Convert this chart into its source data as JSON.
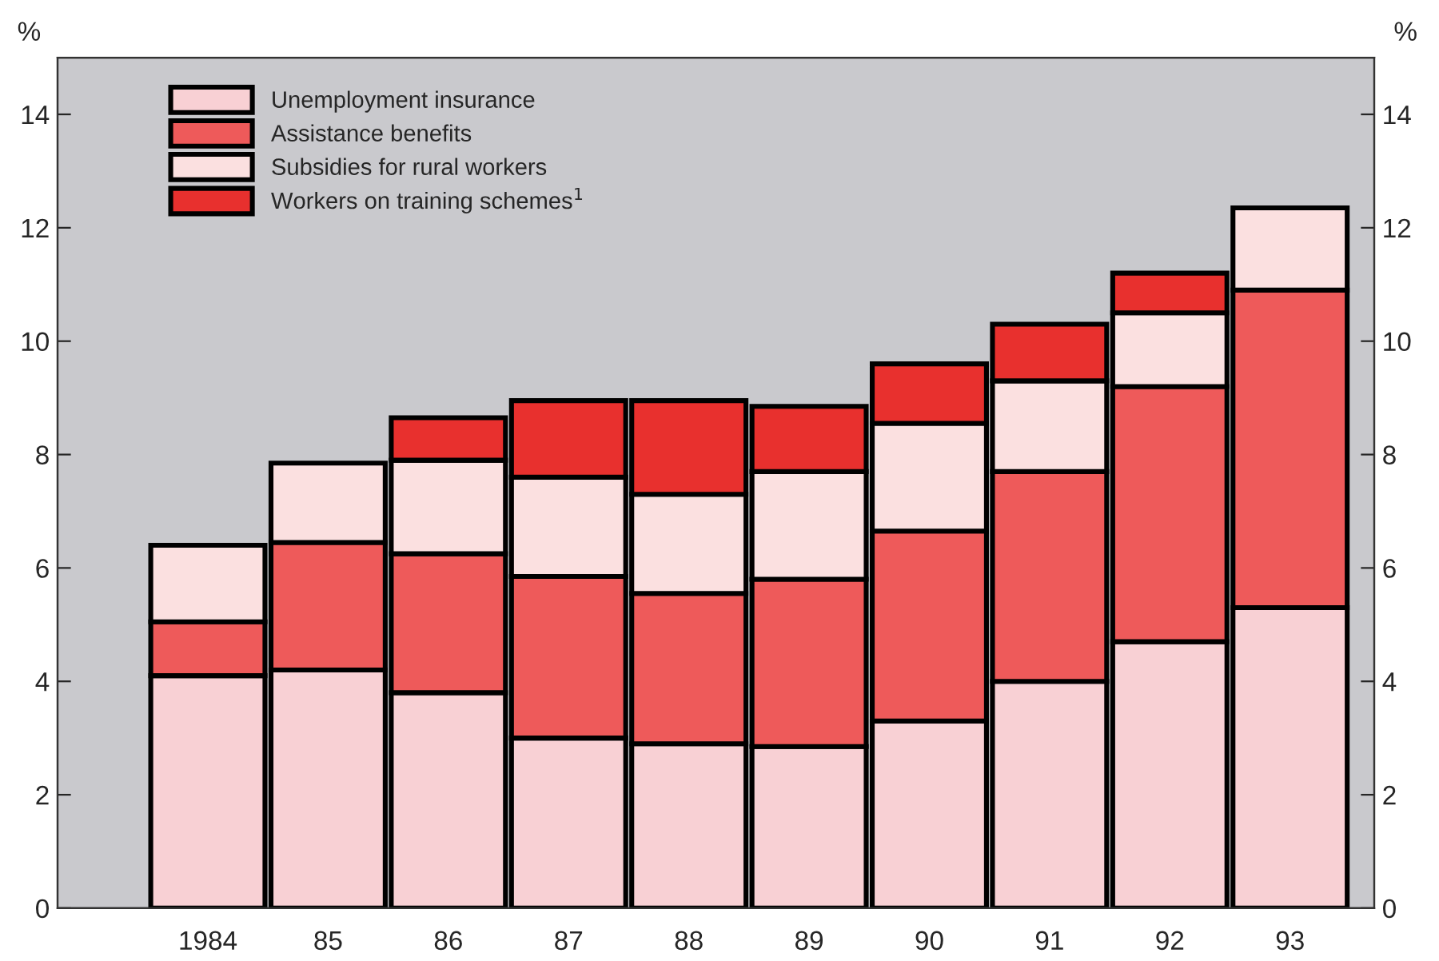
{
  "chart_data": {
    "type": "bar",
    "stacked": true,
    "ylabel": "%",
    "y2label": "%",
    "categories": [
      "1984",
      "85",
      "86",
      "87",
      "88",
      "89",
      "90",
      "91",
      "92",
      "93"
    ],
    "series": [
      {
        "name": "Unemployment insurance",
        "color": "#f8d0d4",
        "values": [
          4.1,
          4.2,
          3.8,
          3.0,
          2.9,
          2.85,
          3.3,
          4.0,
          4.7,
          5.3
        ]
      },
      {
        "name": "Assistance benefits",
        "color": "#ee5a5a",
        "values": [
          0.95,
          2.25,
          2.45,
          2.85,
          2.65,
          2.95,
          3.35,
          3.7,
          4.5,
          5.6
        ]
      },
      {
        "name": "Subsidies for rural workers",
        "color": "#fbe0e0",
        "values": [
          1.35,
          1.4,
          1.65,
          1.75,
          1.75,
          1.9,
          1.9,
          1.6,
          1.3,
          1.45
        ]
      },
      {
        "name": "Workers on training schemes$^{1}$",
        "color": "#e8302e",
        "values": [
          null,
          null,
          0.75,
          1.35,
          1.65,
          1.15,
          1.05,
          1.0,
          0.7,
          null
        ]
      }
    ],
    "ylim": [
      0,
      15
    ],
    "yticks": [
      0,
      2,
      4,
      6,
      8,
      10,
      12,
      14
    ],
    "y2lim": [
      0,
      15
    ],
    "y2ticks": [
      0,
      2,
      4,
      6,
      8,
      10,
      12,
      14
    ],
    "legend": "top left"
  }
}
